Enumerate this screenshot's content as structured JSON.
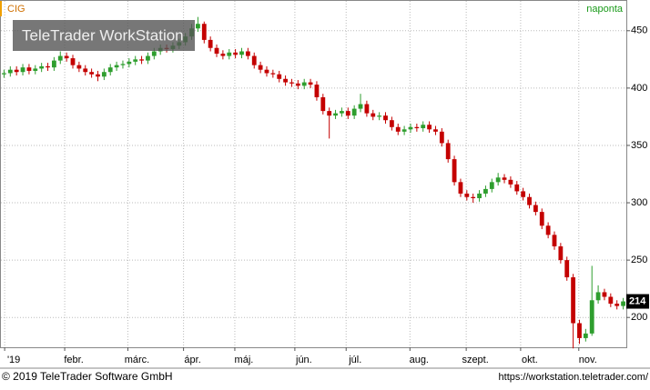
{
  "chart_data": {
    "type": "candlestick",
    "title": "CIG",
    "subtitle": "naponta",
    "watermark": "TeleTrader WorkStation",
    "footer_left": "© 2019 TeleTrader Software GmbH",
    "footer_right": "https://workstation.teletrader.com/",
    "up_color": "#2e9e2e",
    "down_color": "#c40000",
    "grid": true,
    "xlim": [
      0,
      100
    ],
    "ylim": [
      174,
      476
    ],
    "yticks": [
      200,
      250,
      300,
      350,
      400,
      450
    ],
    "xticks": [
      {
        "value": 0.6,
        "label": "'19"
      },
      {
        "value": 10.2,
        "label": "febr."
      },
      {
        "value": 20.3,
        "label": "márc."
      },
      {
        "value": 29.2,
        "label": "ápr."
      },
      {
        "value": 37.4,
        "label": "máj."
      },
      {
        "value": 47,
        "label": "jún."
      },
      {
        "value": 55.2,
        "label": "júl."
      },
      {
        "value": 65.4,
        "label": "aug."
      },
      {
        "value": 74.4,
        "label": "szept."
      },
      {
        "value": 83.1,
        "label": "okt."
      },
      {
        "value": 92.4,
        "label": "nov."
      }
    ],
    "open": [
      412,
      413,
      416,
      414,
      418,
      415,
      417,
      419,
      418,
      424,
      428,
      426,
      420,
      417,
      414,
      412,
      410,
      414,
      418,
      420,
      421,
      423,
      425,
      424,
      428,
      432,
      435,
      434,
      437,
      440,
      445,
      452,
      456,
      442,
      435,
      430,
      428,
      431,
      429,
      432,
      428,
      420,
      416,
      413,
      412,
      408,
      405,
      404,
      402,
      405,
      403,
      392,
      380,
      376,
      378,
      380,
      376,
      382,
      386,
      378,
      375,
      376,
      372,
      366,
      362,
      364,
      366,
      365,
      368,
      364,
      362,
      352,
      338,
      318,
      308,
      305,
      304,
      308,
      312,
      318,
      322,
      320,
      316,
      310,
      305,
      298,
      292,
      280,
      272,
      262,
      250,
      235,
      195,
      182,
      186,
      215,
      222,
      218,
      212,
      210
    ],
    "high": [
      416,
      419,
      419,
      421,
      421,
      420,
      422,
      422,
      427,
      432,
      431,
      429,
      423,
      420,
      417,
      415,
      417,
      421,
      423,
      424,
      426,
      428,
      428,
      431,
      435,
      438,
      438,
      440,
      443,
      448,
      456,
      462,
      458,
      445,
      438,
      433,
      434,
      434,
      435,
      435,
      431,
      423,
      419,
      416,
      415,
      411,
      408,
      407,
      408,
      408,
      406,
      395,
      383,
      381,
      383,
      383,
      385,
      395,
      389,
      381,
      379,
      379,
      375,
      369,
      367,
      369,
      369,
      371,
      371,
      367,
      365,
      355,
      341,
      321,
      311,
      308,
      311,
      315,
      321,
      326,
      325,
      323,
      319,
      313,
      308,
      301,
      295,
      283,
      275,
      265,
      253,
      238,
      198,
      190,
      245,
      228,
      225,
      221,
      215,
      217
    ],
    "low": [
      409,
      410,
      411,
      411,
      412,
      412,
      414,
      415,
      415,
      421,
      423,
      417,
      414,
      411,
      409,
      406,
      407,
      411,
      415,
      417,
      418,
      420,
      421,
      421,
      425,
      429,
      431,
      431,
      434,
      437,
      442,
      449,
      439,
      432,
      427,
      425,
      425,
      426,
      426,
      425,
      417,
      413,
      410,
      409,
      405,
      402,
      401,
      399,
      399,
      400,
      389,
      377,
      356,
      373,
      375,
      373,
      373,
      379,
      375,
      372,
      372,
      369,
      363,
      359,
      359,
      361,
      362,
      362,
      361,
      359,
      349,
      335,
      315,
      305,
      302,
      300,
      301,
      305,
      309,
      315,
      317,
      313,
      307,
      302,
      295,
      289,
      277,
      269,
      259,
      247,
      232,
      173,
      177,
      179,
      184,
      212,
      215,
      209,
      207,
      207
    ],
    "close": [
      413,
      416,
      414,
      418,
      415,
      417,
      419,
      418,
      424,
      428,
      426,
      420,
      417,
      414,
      412,
      410,
      414,
      418,
      420,
      421,
      423,
      425,
      424,
      428,
      432,
      435,
      434,
      437,
      440,
      445,
      452,
      456,
      442,
      435,
      430,
      428,
      431,
      429,
      432,
      428,
      420,
      416,
      413,
      412,
      408,
      405,
      404,
      402,
      405,
      403,
      392,
      380,
      376,
      378,
      380,
      376,
      382,
      386,
      378,
      375,
      376,
      372,
      366,
      362,
      364,
      366,
      365,
      368,
      364,
      362,
      352,
      338,
      318,
      308,
      305,
      304,
      308,
      312,
      318,
      322,
      320,
      316,
      310,
      305,
      298,
      292,
      280,
      272,
      262,
      250,
      235,
      195,
      182,
      186,
      215,
      222,
      218,
      212,
      210,
      214
    ]
  }
}
